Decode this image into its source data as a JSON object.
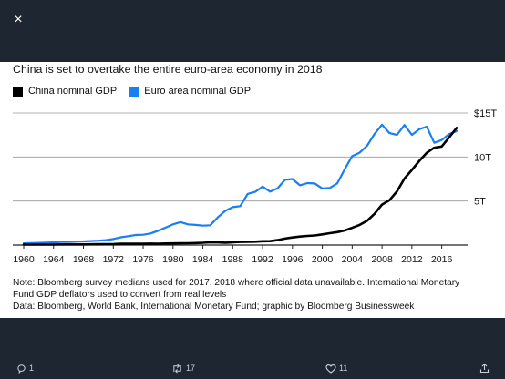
{
  "viewer": {
    "close_label": "×",
    "actions": {
      "reply_count": "1",
      "retweet_count": "17",
      "like_count": "11"
    }
  },
  "card": {
    "title": "China is set to overtake the entire euro-area economy in 2018",
    "note_line1": "Note: Bloomberg survey medians used for 2017, 2018 where official data unavailable. International Monetary",
    "note_line2": "Fund GDP deflators used to convert from real levels",
    "source_line": "Data: Bloomberg, World Bank, International Monetary Fund; graphic by Bloomberg Businessweek"
  },
  "colors": {
    "china": "#000000",
    "euro": "#1a7ff0",
    "grid": "#999999",
    "axis": "#222222"
  },
  "chart_data": {
    "type": "line",
    "title": "China is set to overtake the entire euro-area economy in 2018",
    "xlabel": "",
    "ylabel": "",
    "xlim": [
      1960,
      2018
    ],
    "ylim": [
      0,
      15
    ],
    "x_ticks": [
      "1960",
      "1964",
      "1968",
      "1972",
      "1976",
      "1980",
      "1984",
      "1988",
      "1992",
      "1996",
      "2000",
      "2004",
      "2008",
      "2012",
      "2016"
    ],
    "y_ticks": [
      {
        "value": 5,
        "label": "5T"
      },
      {
        "value": 10,
        "label": "10T"
      },
      {
        "value": 15,
        "label": "$15T"
      }
    ],
    "grid": true,
    "legend_position": "top-left",
    "series": [
      {
        "name": "China nominal GDP",
        "color": "#000000",
        "x": [
          1960,
          1961,
          1962,
          1963,
          1964,
          1965,
          1966,
          1967,
          1968,
          1969,
          1970,
          1971,
          1972,
          1973,
          1974,
          1975,
          1976,
          1977,
          1978,
          1979,
          1980,
          1981,
          1982,
          1983,
          1984,
          1985,
          1986,
          1987,
          1988,
          1989,
          1990,
          1991,
          1992,
          1993,
          1994,
          1995,
          1996,
          1997,
          1998,
          1999,
          2000,
          2001,
          2002,
          2003,
          2004,
          2005,
          2006,
          2007,
          2008,
          2009,
          2010,
          2011,
          2012,
          2013,
          2014,
          2015,
          2016,
          2017,
          2018
        ],
        "y": [
          0.06,
          0.05,
          0.05,
          0.05,
          0.06,
          0.07,
          0.08,
          0.07,
          0.07,
          0.08,
          0.09,
          0.1,
          0.11,
          0.14,
          0.14,
          0.16,
          0.15,
          0.17,
          0.15,
          0.18,
          0.19,
          0.2,
          0.21,
          0.23,
          0.26,
          0.31,
          0.3,
          0.27,
          0.31,
          0.35,
          0.36,
          0.38,
          0.43,
          0.44,
          0.56,
          0.73,
          0.86,
          0.96,
          1.03,
          1.09,
          1.21,
          1.34,
          1.47,
          1.66,
          1.96,
          2.29,
          2.75,
          3.55,
          4.59,
          5.1,
          6.09,
          7.55,
          8.53,
          9.57,
          10.48,
          11.06,
          11.19,
          12.24,
          13.3
        ]
      },
      {
        "name": "Euro area nominal GDP",
        "color": "#1a7ff0",
        "x": [
          1960,
          1961,
          1962,
          1963,
          1964,
          1965,
          1966,
          1967,
          1968,
          1969,
          1970,
          1971,
          1972,
          1973,
          1974,
          1975,
          1976,
          1977,
          1978,
          1979,
          1980,
          1981,
          1982,
          1983,
          1984,
          1985,
          1986,
          1987,
          1988,
          1989,
          1990,
          1991,
          1992,
          1993,
          1994,
          1995,
          1996,
          1997,
          1998,
          1999,
          2000,
          2001,
          2002,
          2003,
          2004,
          2005,
          2006,
          2007,
          2008,
          2009,
          2010,
          2011,
          2012,
          2013,
          2014,
          2015,
          2016,
          2017,
          2018
        ],
        "y": [
          0.2,
          0.22,
          0.25,
          0.28,
          0.31,
          0.34,
          0.37,
          0.38,
          0.41,
          0.46,
          0.5,
          0.56,
          0.68,
          0.88,
          1.0,
          1.14,
          1.17,
          1.31,
          1.62,
          1.98,
          2.35,
          2.61,
          2.35,
          2.29,
          2.2,
          2.25,
          3.15,
          3.88,
          4.3,
          4.42,
          5.8,
          6.04,
          6.64,
          6.06,
          6.43,
          7.41,
          7.5,
          6.79,
          7.03,
          6.99,
          6.42,
          6.49,
          7.0,
          8.62,
          10.1,
          10.49,
          11.28,
          12.62,
          13.68,
          12.71,
          12.52,
          13.63,
          12.52,
          13.17,
          13.44,
          11.62,
          11.93,
          12.61,
          12.95
        ]
      }
    ]
  }
}
